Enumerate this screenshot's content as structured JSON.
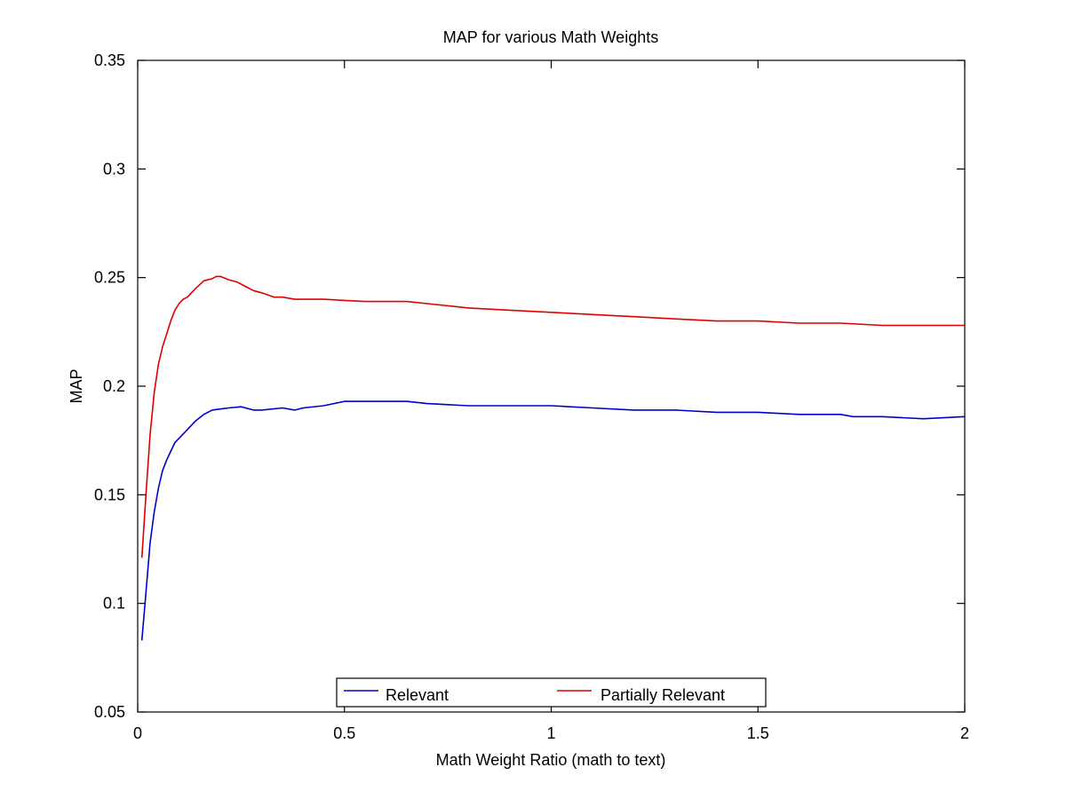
{
  "chart_data": {
    "type": "line",
    "title": "MAP for various Math Weights",
    "xlabel": "Math Weight Ratio (math to text)",
    "ylabel": "MAP",
    "xlim": [
      0,
      2
    ],
    "ylim": [
      0.05,
      0.35
    ],
    "x_ticks": [
      0,
      0.5,
      1,
      1.5,
      2
    ],
    "x_tick_labels": [
      "0",
      "0.5",
      "1",
      "1.5",
      "2"
    ],
    "y_ticks": [
      0.05,
      0.1,
      0.15,
      0.2,
      0.25,
      0.3,
      0.35
    ],
    "y_tick_labels": [
      "0.05",
      "0.1",
      "0.15",
      "0.2",
      "0.25",
      "0.3",
      "0.35"
    ],
    "grid": false,
    "legend": {
      "position": "bottom-center",
      "orientation": "horizontal"
    },
    "series": [
      {
        "name": "Relevant",
        "color": "#0000cc",
        "x": [
          0.01,
          0.02,
          0.03,
          0.04,
          0.05,
          0.06,
          0.07,
          0.08,
          0.09,
          0.1,
          0.12,
          0.14,
          0.16,
          0.18,
          0.2,
          0.22,
          0.25,
          0.28,
          0.3,
          0.35,
          0.38,
          0.4,
          0.45,
          0.5,
          0.55,
          0.6,
          0.65,
          0.7,
          0.8,
          0.9,
          1.0,
          1.1,
          1.2,
          1.3,
          1.4,
          1.5,
          1.6,
          1.7,
          1.73,
          1.8,
          1.9,
          2.0
        ],
        "y": [
          0.083,
          0.105,
          0.128,
          0.142,
          0.153,
          0.161,
          0.166,
          0.17,
          0.174,
          0.176,
          0.18,
          0.184,
          0.187,
          0.189,
          0.1895,
          0.19,
          0.1905,
          0.189,
          0.189,
          0.19,
          0.189,
          0.19,
          0.191,
          0.193,
          0.193,
          0.193,
          0.193,
          0.192,
          0.191,
          0.191,
          0.191,
          0.19,
          0.189,
          0.189,
          0.188,
          0.188,
          0.187,
          0.187,
          0.186,
          0.186,
          0.185,
          0.186
        ]
      },
      {
        "name": "Partially Relevant",
        "color": "#dd0000",
        "x": [
          0.01,
          0.02,
          0.03,
          0.04,
          0.05,
          0.06,
          0.07,
          0.08,
          0.09,
          0.1,
          0.11,
          0.12,
          0.13,
          0.14,
          0.16,
          0.18,
          0.19,
          0.2,
          0.22,
          0.24,
          0.26,
          0.28,
          0.3,
          0.33,
          0.35,
          0.38,
          0.4,
          0.45,
          0.5,
          0.55,
          0.6,
          0.65,
          0.7,
          0.8,
          0.9,
          1.0,
          1.1,
          1.2,
          1.3,
          1.4,
          1.5,
          1.6,
          1.7,
          1.8,
          1.9,
          2.0
        ],
        "y": [
          0.121,
          0.15,
          0.178,
          0.197,
          0.21,
          0.218,
          0.224,
          0.23,
          0.235,
          0.238,
          0.24,
          0.241,
          0.243,
          0.245,
          0.2485,
          0.2495,
          0.2505,
          0.2505,
          0.249,
          0.248,
          0.246,
          0.244,
          0.243,
          0.241,
          0.241,
          0.24,
          0.24,
          0.24,
          0.2395,
          0.239,
          0.239,
          0.239,
          0.238,
          0.236,
          0.235,
          0.234,
          0.233,
          0.232,
          0.231,
          0.23,
          0.23,
          0.229,
          0.229,
          0.228,
          0.228,
          0.228
        ]
      }
    ]
  }
}
